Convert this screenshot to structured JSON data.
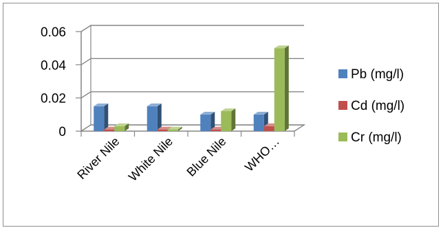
{
  "chart_data": {
    "type": "bar",
    "style": "3d-clustered-column",
    "categories": [
      "River Nile",
      "White Nile",
      "Blue Nile",
      "WHO…"
    ],
    "series": [
      {
        "name": "Pb (mg/l)",
        "values": [
          0.015,
          0.015,
          0.01,
          0.01
        ],
        "color": "#4f81bd"
      },
      {
        "name": "Cd (mg/l)",
        "values": [
          0.001,
          0.001,
          0.001,
          0.003
        ],
        "color": "#c0504d"
      },
      {
        "name": "Cr (mg/l)",
        "values": [
          0.003,
          0.001,
          0.012,
          0.05
        ],
        "color": "#9bbb59"
      }
    ],
    "ylim": [
      0,
      0.06
    ],
    "yticks": [
      "0",
      "0.02",
      "0.04",
      "0.06"
    ],
    "ytick_values": [
      0,
      0.02,
      0.04,
      0.06
    ],
    "grid": true,
    "legend_position": "right",
    "colors": {
      "grid": "#868686",
      "frame": "#8c8c8c"
    }
  }
}
